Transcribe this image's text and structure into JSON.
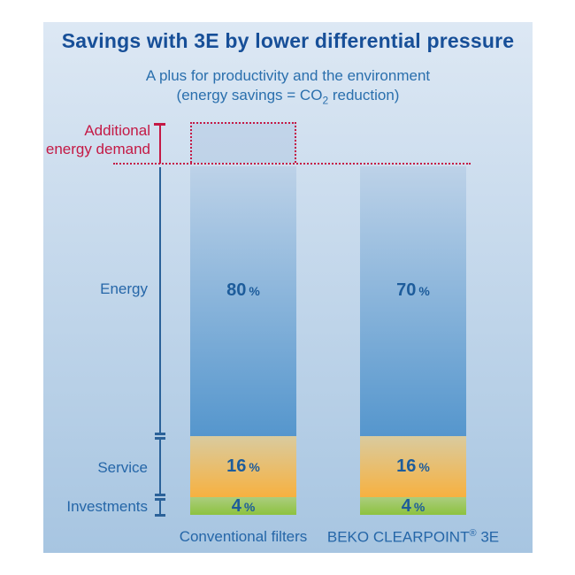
{
  "title": "Savings with 3E by lower differential pressure",
  "subtitle": {
    "line1": "A plus for productivity and the environment",
    "line2_prefix": "(energy savings = CO",
    "line2_sub": "2",
    "line2_suffix": " reduction)"
  },
  "side_labels": {
    "additional_line1": "Additional",
    "additional_line2": "energy demand",
    "energy": "Energy",
    "service": "Service",
    "investments": "Investments"
  },
  "bars": [
    {
      "category": "Conventional filters",
      "segments": [
        {
          "name": "Energy",
          "value": "80",
          "unit": "%"
        },
        {
          "name": "Service",
          "value": "16",
          "unit": "%"
        },
        {
          "name": "Investments",
          "value": "4",
          "unit": "%"
        }
      ]
    },
    {
      "category": "BEKO CLEARPOINT® 3E",
      "segments": [
        {
          "name": "Energy",
          "value": "70",
          "unit": "%"
        },
        {
          "name": "Service",
          "value": "16",
          "unit": "%"
        },
        {
          "name": "Investments",
          "value": "4",
          "unit": "%"
        }
      ]
    }
  ],
  "x_labels": {
    "left": "Conventional filters",
    "right_prefix": "BEKO CLEARPOINT",
    "right_reg": "®",
    "right_suffix": " 3E"
  },
  "chart_data": {
    "type": "bar",
    "stacked": true,
    "categories": [
      "Conventional filters",
      "BEKO CLEARPOINT® 3E"
    ],
    "series": [
      {
        "name": "Energy",
        "values": [
          80,
          70
        ]
      },
      {
        "name": "Service",
        "values": [
          16,
          16
        ]
      },
      {
        "name": "Investments",
        "values": [
          4,
          4
        ]
      }
    ],
    "units": "%",
    "title": "Savings with 3E by lower differential pressure",
    "subtitle": [
      "A plus for productivity and the environment",
      "(energy savings = CO2 reduction)"
    ],
    "annotations": [
      {
        "text": "Additional energy demand",
        "target": "Conventional filters",
        "style": "red dotted box above conventional-filters bar with dotted reference line extending across both bars"
      }
    ],
    "legend_position": "row labels at left (Energy, Service, Investments) with blue bracket lines",
    "grid": false
  },
  "colors": {
    "red": "#c41945",
    "title_blue": "#174f98",
    "subtitle_blue": "#2a6fad",
    "label_blue": "#2566a8",
    "percent_blue": "#1d5c9b",
    "bracket_blue": "#2b6299",
    "panel_top": "#dde8f4",
    "panel_bottom": "#a7c5e1",
    "bar_blue_top": "#bdd2e8",
    "bar_blue_bottom": "#5596cd",
    "service_top": "#d9cb9f",
    "service_bottom": "#f7b140",
    "invest_top": "#abcd7e",
    "invest_bottom": "#8dc23f",
    "dotted_box_fill": "rgba(150,180,215,0.28)"
  }
}
